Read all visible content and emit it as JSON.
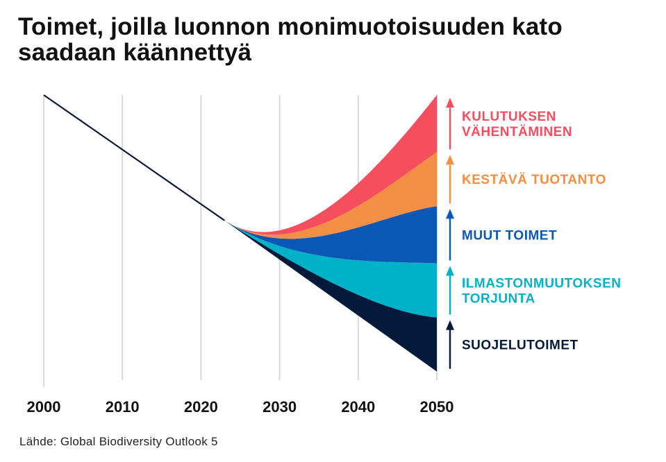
{
  "title_line1": "Toimet, joilla luonnon monimuotoisuuden kato",
  "title_line2": "saadaan käännettyä",
  "source": "Lähde: Global Biodiversity Outlook 5",
  "chart_data": {
    "type": "area",
    "title": "Toimet, joilla luonnon monimuotoisuuden kato saadaan käännettyä",
    "xlabel": "",
    "ylabel": "",
    "x_ticks": [
      "2000",
      "2010",
      "2020",
      "2030",
      "2040",
      "2050"
    ],
    "xlim": [
      2000,
      2050
    ],
    "ylim": [
      0,
      100
    ],
    "grid": true,
    "historical_trend": {
      "name": "Luonnon monimuotoisuuden kato",
      "color": "#0b1a3a",
      "x": [
        2000,
        2023
      ],
      "y": [
        100,
        56
      ]
    },
    "branch_start": {
      "x": 2023,
      "y": 56
    },
    "baseline_2050": 3,
    "series": [
      {
        "name": "SUOJELUTOIMET",
        "label_lines": [
          "SUOJELUTOIMET"
        ],
        "color": "#041a3a",
        "end_top_2050": 22
      },
      {
        "name": "ILMASTONMUUTOKSEN TORJUNTA",
        "label_lines": [
          "ILMASTONMUUTOKSEN",
          "TORJUNTA"
        ],
        "color": "#00b2c8",
        "end_top_2050": 41
      },
      {
        "name": "MUUT TOIMET",
        "label_lines": [
          "MUUT TOIMET"
        ],
        "color": "#0a57b5",
        "end_top_2050": 61
      },
      {
        "name": "KESTÄVÄ TUOTANTO",
        "label_lines": [
          "KESTÄVÄ TUOTANTO"
        ],
        "color": "#f38e45",
        "end_top_2050": 80
      },
      {
        "name": "KULUTUKSEN VÄHENTÄMINEN",
        "label_lines": [
          "KULUTUKSEN",
          "VÄHENTÄMINEN"
        ],
        "color": "#f54e5e",
        "end_top_2050": 100
      }
    ]
  }
}
